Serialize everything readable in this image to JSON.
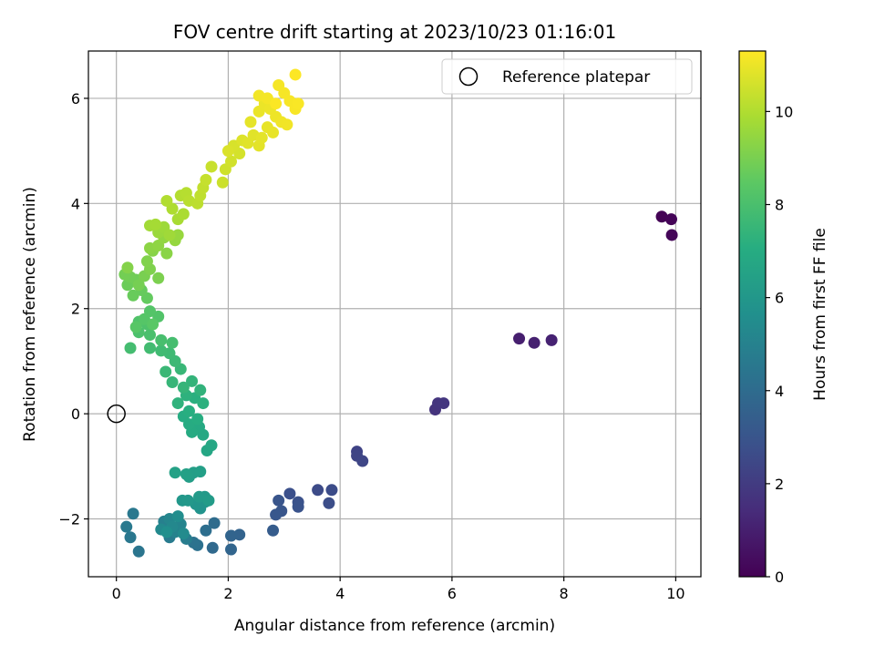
{
  "chart_data": {
    "type": "scatter",
    "title": "FOV centre drift starting at 2023/10/23 01:16:01",
    "xlabel": "Angular distance from reference (arcmin)",
    "ylabel": "Rotation from reference (arcmin)",
    "xlim": [
      -0.5,
      10.45
    ],
    "ylim": [
      -3.1,
      6.9
    ],
    "xticks": [
      0,
      2,
      4,
      6,
      8,
      10
    ],
    "yticks": [
      -2,
      0,
      2,
      4,
      6
    ],
    "xtick_labels": [
      "0",
      "2",
      "4",
      "6",
      "8",
      "10"
    ],
    "ytick_labels": [
      "−2",
      "0",
      "2",
      "4",
      "6"
    ],
    "grid": true,
    "colormap": "viridis",
    "colorbar": {
      "label": "Hours from first FF file",
      "range": [
        0,
        11.3
      ],
      "ticks": [
        0,
        2,
        4,
        6,
        8,
        10
      ],
      "tick_labels": [
        "0",
        "2",
        "4",
        "6",
        "8",
        "10"
      ]
    },
    "legend": {
      "position": "top-right",
      "entries": [
        {
          "label": "Reference platepar",
          "marker": "open-circle"
        }
      ]
    },
    "reference_point": {
      "x": 0,
      "y": 0
    },
    "points": [
      {
        "x": 9.75,
        "y": 3.75,
        "h": 0.05
      },
      {
        "x": 9.92,
        "y": 3.7,
        "h": 0.1
      },
      {
        "x": 9.93,
        "y": 3.4,
        "h": 0.15
      },
      {
        "x": 7.2,
        "y": 1.43,
        "h": 1.0
      },
      {
        "x": 7.47,
        "y": 1.35,
        "h": 1.05
      },
      {
        "x": 7.78,
        "y": 1.4,
        "h": 1.1
      },
      {
        "x": 5.7,
        "y": 0.08,
        "h": 1.7
      },
      {
        "x": 5.75,
        "y": 0.2,
        "h": 1.75
      },
      {
        "x": 5.85,
        "y": 0.2,
        "h": 1.8
      },
      {
        "x": 4.3,
        "y": -0.72,
        "h": 2.3
      },
      {
        "x": 4.3,
        "y": -0.8,
        "h": 2.35
      },
      {
        "x": 4.4,
        "y": -0.9,
        "h": 2.4
      },
      {
        "x": 3.6,
        "y": -1.45,
        "h": 2.6
      },
      {
        "x": 3.85,
        "y": -1.45,
        "h": 2.65
      },
      {
        "x": 3.8,
        "y": -1.7,
        "h": 2.7
      },
      {
        "x": 3.1,
        "y": -1.52,
        "h": 2.8
      },
      {
        "x": 3.25,
        "y": -1.68,
        "h": 2.85
      },
      {
        "x": 3.25,
        "y": -1.77,
        "h": 2.9
      },
      {
        "x": 2.9,
        "y": -1.65,
        "h": 3.0
      },
      {
        "x": 2.95,
        "y": -1.85,
        "h": 3.05
      },
      {
        "x": 2.85,
        "y": -1.92,
        "h": 3.1
      },
      {
        "x": 2.8,
        "y": -2.22,
        "h": 3.3
      },
      {
        "x": 2.2,
        "y": -2.3,
        "h": 3.6
      },
      {
        "x": 2.05,
        "y": -2.32,
        "h": 3.65
      },
      {
        "x": 2.05,
        "y": -2.58,
        "h": 3.7
      },
      {
        "x": 1.72,
        "y": -2.55,
        "h": 3.9
      },
      {
        "x": 1.75,
        "y": -2.08,
        "h": 4.0
      },
      {
        "x": 1.6,
        "y": -2.22,
        "h": 4.1
      },
      {
        "x": 1.45,
        "y": -2.5,
        "h": 4.2
      },
      {
        "x": 1.38,
        "y": -2.45,
        "h": 4.3
      },
      {
        "x": 0.4,
        "y": -2.62,
        "h": 4.4
      },
      {
        "x": 0.25,
        "y": -2.35,
        "h": 4.5
      },
      {
        "x": 0.3,
        "y": -1.9,
        "h": 4.55
      },
      {
        "x": 0.18,
        "y": -2.15,
        "h": 4.6
      },
      {
        "x": 0.95,
        "y": -2.35,
        "h": 4.7
      },
      {
        "x": 1.25,
        "y": -2.38,
        "h": 4.8
      },
      {
        "x": 0.85,
        "y": -2.05,
        "h": 4.9
      },
      {
        "x": 1.05,
        "y": -2.25,
        "h": 5.0
      },
      {
        "x": 1.15,
        "y": -2.1,
        "h": 5.1
      },
      {
        "x": 0.95,
        "y": -2.0,
        "h": 5.2
      },
      {
        "x": 1.0,
        "y": -2.15,
        "h": 5.3
      },
      {
        "x": 0.8,
        "y": -2.2,
        "h": 5.35
      },
      {
        "x": 1.2,
        "y": -2.28,
        "h": 5.4
      },
      {
        "x": 1.1,
        "y": -1.95,
        "h": 5.5
      },
      {
        "x": 0.9,
        "y": -2.25,
        "h": 5.6
      },
      {
        "x": 1.5,
        "y": -1.8,
        "h": 5.8
      },
      {
        "x": 1.58,
        "y": -1.68,
        "h": 5.85
      },
      {
        "x": 1.42,
        "y": -1.72,
        "h": 5.9
      },
      {
        "x": 1.18,
        "y": -1.65,
        "h": 6.0
      },
      {
        "x": 1.28,
        "y": -1.65,
        "h": 6.05
      },
      {
        "x": 1.58,
        "y": -1.58,
        "h": 6.1
      },
      {
        "x": 1.48,
        "y": -1.58,
        "h": 6.15
      },
      {
        "x": 1.65,
        "y": -1.65,
        "h": 6.2
      },
      {
        "x": 1.3,
        "y": -1.2,
        "h": 6.3
      },
      {
        "x": 1.38,
        "y": -1.12,
        "h": 6.35
      },
      {
        "x": 1.5,
        "y": -1.1,
        "h": 6.4
      },
      {
        "x": 1.25,
        "y": -1.15,
        "h": 6.45
      },
      {
        "x": 1.05,
        "y": -1.12,
        "h": 6.5
      },
      {
        "x": 1.62,
        "y": -0.7,
        "h": 6.7
      },
      {
        "x": 1.7,
        "y": -0.6,
        "h": 6.75
      },
      {
        "x": 1.55,
        "y": -0.4,
        "h": 6.8
      },
      {
        "x": 1.48,
        "y": -0.25,
        "h": 6.85
      },
      {
        "x": 1.35,
        "y": -0.35,
        "h": 6.9
      },
      {
        "x": 1.3,
        "y": -0.2,
        "h": 6.95
      },
      {
        "x": 1.2,
        "y": -0.05,
        "h": 7.0
      },
      {
        "x": 1.45,
        "y": -0.1,
        "h": 7.05
      },
      {
        "x": 1.3,
        "y": 0.05,
        "h": 7.1
      },
      {
        "x": 1.4,
        "y": 0.3,
        "h": 7.15
      },
      {
        "x": 1.55,
        "y": 0.2,
        "h": 7.2
      },
      {
        "x": 1.25,
        "y": 0.35,
        "h": 7.25
      },
      {
        "x": 1.1,
        "y": 0.2,
        "h": 7.3
      },
      {
        "x": 1.5,
        "y": 0.45,
        "h": 7.35
      },
      {
        "x": 1.35,
        "y": 0.62,
        "h": 7.4
      },
      {
        "x": 1.2,
        "y": 0.5,
        "h": 7.45
      },
      {
        "x": 1.0,
        "y": 0.6,
        "h": 7.5
      },
      {
        "x": 1.15,
        "y": 0.85,
        "h": 7.55
      },
      {
        "x": 0.88,
        "y": 0.8,
        "h": 7.6
      },
      {
        "x": 1.05,
        "y": 1.0,
        "h": 7.65
      },
      {
        "x": 0.95,
        "y": 1.15,
        "h": 7.7
      },
      {
        "x": 0.8,
        "y": 1.2,
        "h": 7.75
      },
      {
        "x": 0.6,
        "y": 1.25,
        "h": 7.8
      },
      {
        "x": 0.25,
        "y": 1.25,
        "h": 7.85
      },
      {
        "x": 1.0,
        "y": 1.35,
        "h": 7.9
      },
      {
        "x": 0.8,
        "y": 1.4,
        "h": 7.95
      },
      {
        "x": 0.6,
        "y": 1.5,
        "h": 8.0
      },
      {
        "x": 0.4,
        "y": 1.55,
        "h": 8.05
      },
      {
        "x": 0.55,
        "y": 1.7,
        "h": 8.1
      },
      {
        "x": 0.4,
        "y": 1.75,
        "h": 8.15
      },
      {
        "x": 0.75,
        "y": 1.85,
        "h": 8.2
      },
      {
        "x": 0.6,
        "y": 1.95,
        "h": 8.25
      },
      {
        "x": 0.5,
        "y": 1.8,
        "h": 8.3
      },
      {
        "x": 0.35,
        "y": 1.65,
        "h": 8.35
      },
      {
        "x": 0.65,
        "y": 1.7,
        "h": 8.4
      },
      {
        "x": 0.55,
        "y": 2.2,
        "h": 8.6
      },
      {
        "x": 0.45,
        "y": 2.35,
        "h": 8.65
      },
      {
        "x": 0.3,
        "y": 2.25,
        "h": 8.7
      },
      {
        "x": 0.2,
        "y": 2.45,
        "h": 8.75
      },
      {
        "x": 0.35,
        "y": 2.55,
        "h": 8.8
      },
      {
        "x": 0.25,
        "y": 2.6,
        "h": 8.85
      },
      {
        "x": 0.15,
        "y": 2.65,
        "h": 8.9
      },
      {
        "x": 0.4,
        "y": 2.45,
        "h": 8.95
      },
      {
        "x": 0.5,
        "y": 2.62,
        "h": 9.0
      },
      {
        "x": 0.75,
        "y": 2.58,
        "h": 9.05
      },
      {
        "x": 0.6,
        "y": 2.75,
        "h": 9.1
      },
      {
        "x": 0.55,
        "y": 2.9,
        "h": 9.15
      },
      {
        "x": 0.2,
        "y": 2.78,
        "h": 9.2
      },
      {
        "x": 0.65,
        "y": 3.1,
        "h": 9.25
      },
      {
        "x": 0.9,
        "y": 3.05,
        "h": 9.3
      },
      {
        "x": 0.6,
        "y": 3.15,
        "h": 9.35
      },
      {
        "x": 0.75,
        "y": 3.2,
        "h": 9.4
      },
      {
        "x": 0.85,
        "y": 3.35,
        "h": 9.45
      },
      {
        "x": 1.05,
        "y": 3.3,
        "h": 9.5
      },
      {
        "x": 1.1,
        "y": 3.4,
        "h": 9.55
      },
      {
        "x": 0.75,
        "y": 3.45,
        "h": 9.6
      },
      {
        "x": 0.85,
        "y": 3.55,
        "h": 9.65
      },
      {
        "x": 0.95,
        "y": 3.4,
        "h": 9.7
      },
      {
        "x": 0.6,
        "y": 3.58,
        "h": 9.75
      },
      {
        "x": 0.7,
        "y": 3.6,
        "h": 9.8
      },
      {
        "x": 1.1,
        "y": 3.7,
        "h": 9.85
      },
      {
        "x": 1.2,
        "y": 3.8,
        "h": 9.9
      },
      {
        "x": 1.0,
        "y": 3.9,
        "h": 9.95
      },
      {
        "x": 0.9,
        "y": 4.05,
        "h": 10.0
      },
      {
        "x": 1.15,
        "y": 4.15,
        "h": 10.05
      },
      {
        "x": 1.25,
        "y": 4.2,
        "h": 10.1
      },
      {
        "x": 1.3,
        "y": 4.05,
        "h": 10.15
      },
      {
        "x": 1.45,
        "y": 4.0,
        "h": 10.2
      },
      {
        "x": 1.5,
        "y": 4.15,
        "h": 10.25
      },
      {
        "x": 1.55,
        "y": 4.3,
        "h": 10.3
      },
      {
        "x": 1.6,
        "y": 4.45,
        "h": 10.35
      },
      {
        "x": 1.7,
        "y": 4.7,
        "h": 10.4
      },
      {
        "x": 1.9,
        "y": 4.4,
        "h": 10.45
      },
      {
        "x": 1.95,
        "y": 4.65,
        "h": 10.5
      },
      {
        "x": 2.05,
        "y": 4.8,
        "h": 10.55
      },
      {
        "x": 2.2,
        "y": 4.95,
        "h": 10.6
      },
      {
        "x": 2.1,
        "y": 5.1,
        "h": 10.65
      },
      {
        "x": 2.0,
        "y": 5.0,
        "h": 10.7
      },
      {
        "x": 2.25,
        "y": 5.2,
        "h": 10.75
      },
      {
        "x": 2.35,
        "y": 5.15,
        "h": 10.8
      },
      {
        "x": 2.45,
        "y": 5.3,
        "h": 10.82
      },
      {
        "x": 2.55,
        "y": 5.1,
        "h": 10.85
      },
      {
        "x": 2.6,
        "y": 5.25,
        "h": 10.88
      },
      {
        "x": 2.4,
        "y": 5.55,
        "h": 10.9
      },
      {
        "x": 2.7,
        "y": 5.45,
        "h": 10.92
      },
      {
        "x": 2.8,
        "y": 5.35,
        "h": 10.95
      },
      {
        "x": 2.55,
        "y": 5.75,
        "h": 10.98
      },
      {
        "x": 2.65,
        "y": 5.9,
        "h": 11.0
      },
      {
        "x": 2.75,
        "y": 5.8,
        "h": 11.02
      },
      {
        "x": 2.85,
        "y": 5.65,
        "h": 11.05
      },
      {
        "x": 2.95,
        "y": 5.55,
        "h": 11.08
      },
      {
        "x": 3.05,
        "y": 5.5,
        "h": 11.1
      },
      {
        "x": 2.55,
        "y": 6.05,
        "h": 11.12
      },
      {
        "x": 2.7,
        "y": 6.0,
        "h": 11.14
      },
      {
        "x": 2.9,
        "y": 6.25,
        "h": 11.16
      },
      {
        "x": 3.0,
        "y": 6.1,
        "h": 11.18
      },
      {
        "x": 3.1,
        "y": 5.95,
        "h": 11.2
      },
      {
        "x": 3.2,
        "y": 5.8,
        "h": 11.22
      },
      {
        "x": 3.25,
        "y": 5.9,
        "h": 11.24
      },
      {
        "x": 2.85,
        "y": 5.9,
        "h": 11.26
      },
      {
        "x": 3.2,
        "y": 6.45,
        "h": 11.28
      }
    ]
  }
}
